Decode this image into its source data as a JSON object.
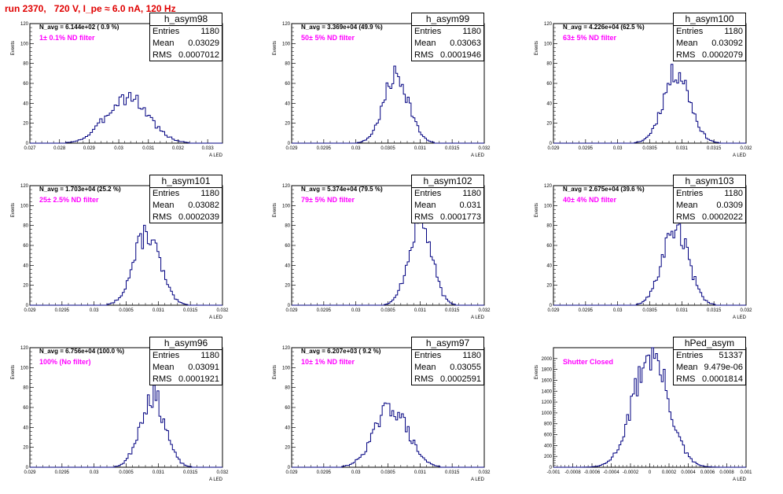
{
  "page": {
    "title": "run 2370,   720 V, I_pe ≈ 6.0 nA, 120 Hz",
    "colors": {
      "title": "#e00000",
      "histogram": "#000080",
      "annotation": "#ff00ff"
    }
  },
  "stat_labels": {
    "entries": "Entries",
    "mean": "Mean",
    "rms": "RMS"
  },
  "chart_data": [
    {
      "type": "bar",
      "subtype": "histogram",
      "name": "h_asym98",
      "ylabel": "Events",
      "xlabel": "A_LED",
      "navg": "N_avg = 6.144e+02 ( 0.9 %)",
      "filter_label": "1± 0.1% ND filter",
      "stats": {
        "entries": "1180",
        "mean": "0.03029",
        "rms": "0.0007012"
      },
      "xlim": [
        0.027,
        0.0335
      ],
      "ylim": [
        0,
        120
      ],
      "xticks": [
        0.027,
        0.028,
        0.029,
        0.03,
        0.031,
        0.032,
        0.033
      ],
      "xtick_labels": [
        "0.027",
        "0.028",
        "0.029",
        "0.03",
        "0.031",
        "0.032",
        "0.033"
      ],
      "yticks": [
        0,
        20,
        40,
        60,
        80,
        100,
        120
      ],
      "hist": {
        "mean": 0.03029,
        "sigma": 0.0007012,
        "peak": 47,
        "bins": 80,
        "seed": 3
      }
    },
    {
      "type": "bar",
      "subtype": "histogram",
      "name": "h_asym99",
      "ylabel": "Events",
      "xlabel": "A_LED",
      "navg": "N_avg = 3.369e+04 (49.9 %)",
      "filter_label": "50± 5% ND filter",
      "stats": {
        "entries": "1180",
        "mean": "0.03063",
        "rms": "0.0001946"
      },
      "xlim": [
        0.029,
        0.032
      ],
      "ylim": [
        0,
        120
      ],
      "xticks": [
        0.029,
        0.0295,
        0.03,
        0.0305,
        0.031,
        0.0315,
        0.032
      ],
      "xtick_labels": [
        "0.029",
        "0.0295",
        "0.03",
        "0.0305",
        "0.031",
        "0.0315",
        "0.032"
      ],
      "yticks": [
        0,
        20,
        40,
        60,
        80,
        100,
        120
      ],
      "hist": {
        "mean": 0.03063,
        "sigma": 0.0001946,
        "peak": 68,
        "bins": 100,
        "seed": 7
      }
    },
    {
      "type": "bar",
      "subtype": "histogram",
      "name": "h_asym100",
      "ylabel": "Events",
      "xlabel": "A_LED",
      "navg": "N_avg = 4.226e+04 (62.5 %)",
      "filter_label": "63± 5% ND filter",
      "stats": {
        "entries": "1180",
        "mean": "0.03092",
        "rms": "0.0002079"
      },
      "xlim": [
        0.029,
        0.032
      ],
      "ylim": [
        0,
        120
      ],
      "xticks": [
        0.029,
        0.0295,
        0.03,
        0.0305,
        0.031,
        0.0315,
        0.032
      ],
      "xtick_labels": [
        "0.029",
        "0.0295",
        "0.03",
        "0.0305",
        "0.031",
        "0.0315",
        "0.032"
      ],
      "yticks": [
        0,
        20,
        40,
        60,
        80,
        100,
        120
      ],
      "hist": {
        "mean": 0.03092,
        "sigma": 0.0002079,
        "peak": 72,
        "bins": 100,
        "seed": 11
      }
    },
    {
      "type": "bar",
      "subtype": "histogram",
      "name": "h_asym101",
      "ylabel": "Events",
      "xlabel": "A_LED",
      "navg": "N_avg = 1.703e+04 (25.2 %)",
      "filter_label": "25± 2.5% ND filter",
      "stats": {
        "entries": "1180",
        "mean": "0.03082",
        "rms": "0.0002039"
      },
      "xlim": [
        0.029,
        0.032
      ],
      "ylim": [
        0,
        120
      ],
      "xticks": [
        0.029,
        0.0295,
        0.03,
        0.0305,
        0.031,
        0.0315,
        0.032
      ],
      "xtick_labels": [
        "0.029",
        "0.0295",
        "0.03",
        "0.0305",
        "0.031",
        "0.0315",
        "0.032"
      ],
      "yticks": [
        0,
        20,
        40,
        60,
        80,
        100,
        120
      ],
      "hist": {
        "mean": 0.03082,
        "sigma": 0.0002039,
        "peak": 72,
        "bins": 100,
        "seed": 13
      }
    },
    {
      "type": "bar",
      "subtype": "histogram",
      "name": "h_asym102",
      "ylabel": "Events",
      "xlabel": "A_LED",
      "navg": "N_avg = 5.374e+04 (79.5 %)",
      "filter_label": "79± 5% ND filter",
      "stats": {
        "entries": "1180",
        "mean": "0.031",
        "rms": "0.0001773"
      },
      "xlim": [
        0.029,
        0.032
      ],
      "ylim": [
        0,
        120
      ],
      "xticks": [
        0.029,
        0.0295,
        0.03,
        0.0305,
        0.031,
        0.0315,
        0.032
      ],
      "xtick_labels": [
        "0.029",
        "0.0295",
        "0.03",
        "0.0305",
        "0.031",
        "0.0315",
        "0.032"
      ],
      "yticks": [
        0,
        20,
        40,
        60,
        80,
        100,
        120
      ],
      "hist": {
        "mean": 0.031,
        "sigma": 0.0001773,
        "peak": 85,
        "bins": 100,
        "seed": 17
      }
    },
    {
      "type": "bar",
      "subtype": "histogram",
      "name": "h_asym103",
      "ylabel": "Events",
      "xlabel": "A_LED",
      "navg": "N_avg = 2.675e+04 (39.6 %)",
      "filter_label": "40± 4% ND filter",
      "stats": {
        "entries": "1180",
        "mean": "0.0309",
        "rms": "0.0002022"
      },
      "xlim": [
        0.029,
        0.032
      ],
      "ylim": [
        0,
        120
      ],
      "xticks": [
        0.029,
        0.0295,
        0.03,
        0.0305,
        0.031,
        0.0315,
        0.032
      ],
      "xtick_labels": [
        "0.029",
        "0.0295",
        "0.03",
        "0.0305",
        "0.031",
        "0.0315",
        "0.032"
      ],
      "yticks": [
        0,
        20,
        40,
        60,
        80,
        100,
        120
      ],
      "hist": {
        "mean": 0.0309,
        "sigma": 0.0002022,
        "peak": 78,
        "bins": 100,
        "seed": 19
      }
    },
    {
      "type": "bar",
      "subtype": "histogram",
      "name": "h_asym96",
      "ylabel": "Events",
      "xlabel": "A_LED",
      "navg": "N_avg = 6.756e+04 (100.0 %)",
      "filter_label": "100% (No filter)",
      "stats": {
        "entries": "1180",
        "mean": "0.03091",
        "rms": "0.0001921"
      },
      "xlim": [
        0.029,
        0.032
      ],
      "ylim": [
        0,
        120
      ],
      "xticks": [
        0.029,
        0.0295,
        0.03,
        0.0305,
        0.031,
        0.0315,
        0.032
      ],
      "xtick_labels": [
        "0.029",
        "0.0295",
        "0.03",
        "0.0305",
        "0.031",
        "0.0315",
        "0.032"
      ],
      "yticks": [
        0,
        20,
        40,
        60,
        80,
        100,
        120
      ],
      "hist": {
        "mean": 0.03091,
        "sigma": 0.0001921,
        "peak": 72,
        "bins": 100,
        "seed": 23
      }
    },
    {
      "type": "bar",
      "subtype": "histogram",
      "name": "h_asym97",
      "ylabel": "Events",
      "xlabel": "A_LED",
      "navg": "N_avg = 6.207e+03 ( 9.2 %)",
      "filter_label": "10± 1% ND filter",
      "stats": {
        "entries": "1180",
        "mean": "0.03055",
        "rms": "0.0002591"
      },
      "xlim": [
        0.029,
        0.032
      ],
      "ylim": [
        0,
        120
      ],
      "xticks": [
        0.029,
        0.0295,
        0.03,
        0.0305,
        0.031,
        0.0315,
        0.032
      ],
      "xtick_labels": [
        "0.029",
        "0.0295",
        "0.03",
        "0.0305",
        "0.031",
        "0.0315",
        "0.032"
      ],
      "yticks": [
        0,
        20,
        40,
        60,
        80,
        100,
        120
      ],
      "hist": {
        "mean": 0.03055,
        "sigma": 0.0002591,
        "peak": 60,
        "bins": 100,
        "seed": 29
      }
    },
    {
      "type": "bar",
      "subtype": "histogram",
      "name": "hPed_asym",
      "ylabel": "Events",
      "xlabel": "A_LED",
      "navg": "",
      "filter_label": "Shutter Closed",
      "stats": {
        "entries": "51337",
        "mean": "9.479e-06",
        "rms": "0.0001814"
      },
      "xlim": [
        -0.001,
        0.001
      ],
      "ylim": [
        0,
        2200
      ],
      "xticks": [
        -0.001,
        -0.0008,
        -0.0006,
        -0.0004,
        -0.0002,
        0,
        0.0002,
        0.0004,
        0.0006,
        0.0008,
        0.001
      ],
      "xtick_labels": [
        "-0.001",
        "-0.0008",
        "-0.0006",
        "-0.0004",
        "-0.0002",
        "0",
        "0.0002",
        "0.0004",
        "0.0006",
        "0.0008",
        "0.001"
      ],
      "yticks": [
        0,
        200,
        400,
        600,
        800,
        1000,
        1200,
        1400,
        1600,
        1800,
        2000
      ],
      "hist": {
        "mean": 9.479e-06,
        "sigma": 0.0001814,
        "peak": 2080,
        "bins": 100,
        "seed": 31
      }
    }
  ]
}
